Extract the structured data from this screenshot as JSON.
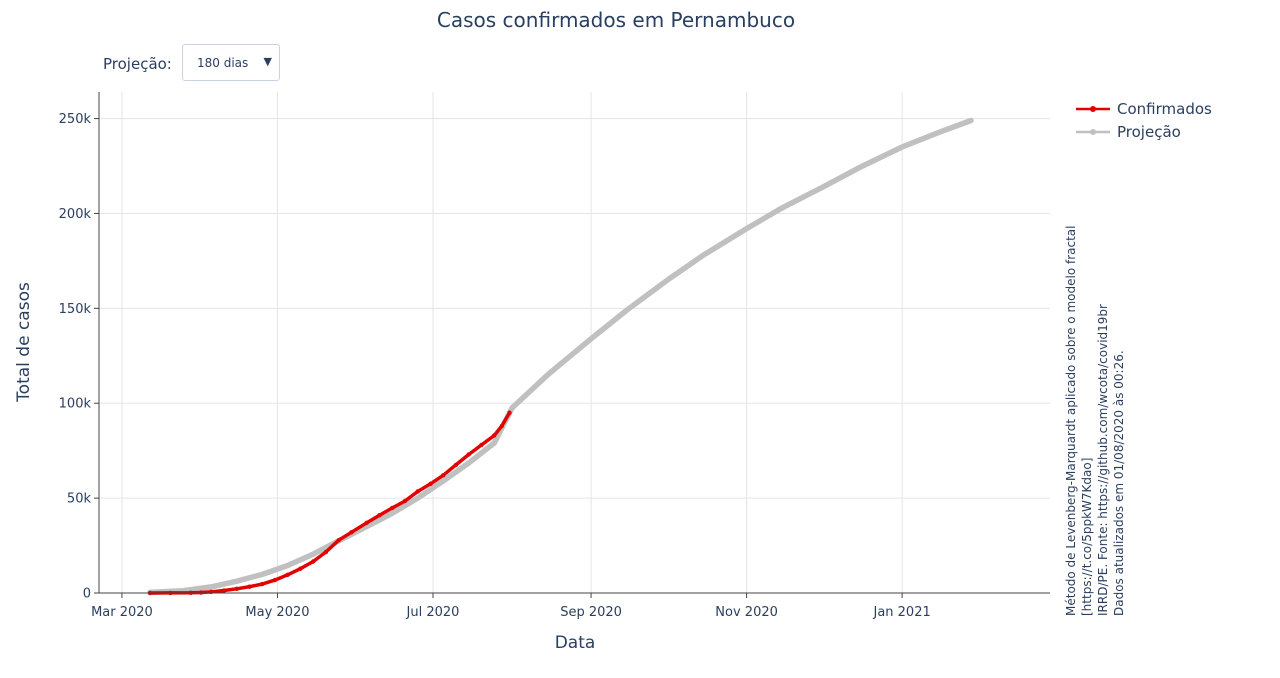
{
  "header": {
    "title": "Casos confirmados em Pernambuco"
  },
  "controls": {
    "projection_label": "Projeção:",
    "projection_value": "180 dias",
    "caret_icon": "caret-down-icon"
  },
  "note": {
    "lines": [
      "Método de Levenberg-Marquardt aplicado sobre o modelo fractal",
      "[https://t.co/5ppkW7Kdao]",
      "IRRD/PE. Fonte: https://github.com/wcota/covid19br",
      "Dados atualizados em 01/08/2020 às 00:26."
    ]
  },
  "colors": {
    "confirmados": "#e50000",
    "projecao": "#c0c0c0",
    "grid": "#e5e5e5",
    "axis": "#444444",
    "text": "#2a3f5f"
  },
  "chart_data": {
    "type": "line",
    "title": "Casos confirmados em Pernambuco",
    "xlabel": "Data",
    "ylabel": "Total de casos",
    "xlim": [
      "2020-02-21",
      "2021-02-28"
    ],
    "ylim": [
      0,
      264000
    ],
    "x_ticks": [
      {
        "date": "2020-03-01",
        "label": "Mar 2020"
      },
      {
        "date": "2020-05-01",
        "label": "May 2020"
      },
      {
        "date": "2020-07-01",
        "label": "Jul 2020"
      },
      {
        "date": "2020-09-01",
        "label": "Sep 2020"
      },
      {
        "date": "2020-11-01",
        "label": "Nov 2020"
      },
      {
        "date": "2021-01-01",
        "label": "Jan 2021"
      }
    ],
    "y_ticks": [
      {
        "value": 0,
        "label": "0"
      },
      {
        "value": 50000,
        "label": "50k"
      },
      {
        "value": 100000,
        "label": "100k"
      },
      {
        "value": 150000,
        "label": "150k"
      },
      {
        "value": 200000,
        "label": "200k"
      },
      {
        "value": 250000,
        "label": "250k"
      }
    ],
    "grid": true,
    "legend_position": "top-right",
    "series": [
      {
        "name": "Confirmados",
        "marker": "circle",
        "points": [
          [
            "2020-03-12",
            2
          ],
          [
            "2020-03-20",
            40
          ],
          [
            "2020-03-28",
            120
          ],
          [
            "2020-04-01",
            250
          ],
          [
            "2020-04-05",
            600
          ],
          [
            "2020-04-10",
            1300
          ],
          [
            "2020-04-15",
            2200
          ],
          [
            "2020-04-20",
            3300
          ],
          [
            "2020-04-25",
            4700
          ],
          [
            "2020-04-30",
            6800
          ],
          [
            "2020-05-05",
            9600
          ],
          [
            "2020-05-10",
            12800
          ],
          [
            "2020-05-15",
            16600
          ],
          [
            "2020-05-20",
            21600
          ],
          [
            "2020-05-25",
            27800
          ],
          [
            "2020-05-30",
            32000
          ],
          [
            "2020-06-05",
            37000
          ],
          [
            "2020-06-10",
            41000
          ],
          [
            "2020-06-15",
            44800
          ],
          [
            "2020-06-20",
            48500
          ],
          [
            "2020-06-25",
            53500
          ],
          [
            "2020-06-30",
            57500
          ],
          [
            "2020-07-05",
            62000
          ],
          [
            "2020-07-10",
            67500
          ],
          [
            "2020-07-15",
            73000
          ],
          [
            "2020-07-20",
            78000
          ],
          [
            "2020-07-25",
            83000
          ],
          [
            "2020-07-28",
            88000
          ],
          [
            "2020-07-31",
            95000
          ]
        ]
      },
      {
        "name": "Projeção",
        "marker": "circle",
        "points": [
          [
            "2020-03-12",
            300
          ],
          [
            "2020-03-25",
            1200
          ],
          [
            "2020-04-05",
            3200
          ],
          [
            "2020-04-15",
            6200
          ],
          [
            "2020-04-25",
            9800
          ],
          [
            "2020-05-05",
            14500
          ],
          [
            "2020-05-15",
            20500
          ],
          [
            "2020-05-25",
            27500
          ],
          [
            "2020-06-05",
            35000
          ],
          [
            "2020-06-15",
            42000
          ],
          [
            "2020-06-25",
            50000
          ],
          [
            "2020-07-05",
            59000
          ],
          [
            "2020-07-15",
            68500
          ],
          [
            "2020-07-25",
            79000
          ],
          [
            "2020-08-01",
            97500
          ],
          [
            "2020-08-15",
            115000
          ],
          [
            "2020-09-01",
            134000
          ],
          [
            "2020-09-15",
            149000
          ],
          [
            "2020-10-01",
            165000
          ],
          [
            "2020-10-15",
            178000
          ],
          [
            "2020-11-01",
            192000
          ],
          [
            "2020-11-15",
            203000
          ],
          [
            "2020-12-01",
            214000
          ],
          [
            "2020-12-15",
            224000
          ],
          [
            "2021-01-01",
            235000
          ],
          [
            "2021-01-15",
            242500
          ],
          [
            "2021-01-28",
            249000
          ]
        ]
      }
    ]
  }
}
